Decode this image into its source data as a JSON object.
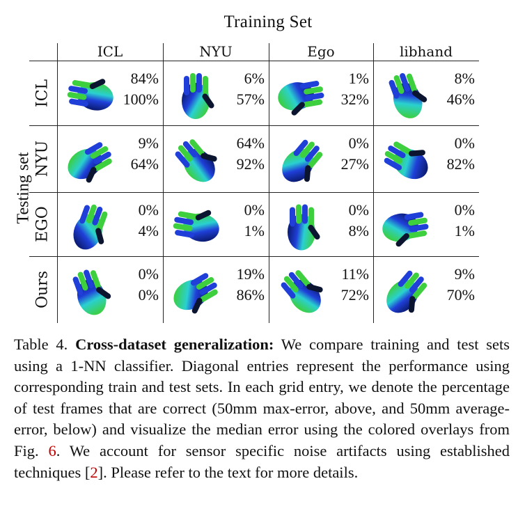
{
  "table": {
    "title": "Training Set",
    "col_headers": [
      "ICL",
      "NYU",
      "Ego",
      "libhand"
    ],
    "row_axis_label": "Testing set",
    "row_headers": [
      "ICL",
      "NYU",
      "EGO",
      "Ours"
    ],
    "rows": [
      {
        "cells": [
          {
            "top": "84%",
            "bottom": "100%"
          },
          {
            "top": "6%",
            "bottom": "57%"
          },
          {
            "top": "1%",
            "bottom": "32%"
          },
          {
            "top": "8%",
            "bottom": "46%"
          }
        ]
      },
      {
        "cells": [
          {
            "top": "9%",
            "bottom": "64%"
          },
          {
            "top": "64%",
            "bottom": "92%"
          },
          {
            "top": "0%",
            "bottom": "27%"
          },
          {
            "top": "0%",
            "bottom": "82%"
          }
        ]
      },
      {
        "cells": [
          {
            "top": "0%",
            "bottom": "4%"
          },
          {
            "top": "0%",
            "bottom": "1%"
          },
          {
            "top": "0%",
            "bottom": "8%"
          },
          {
            "top": "0%",
            "bottom": "1%"
          }
        ]
      },
      {
        "cells": [
          {
            "top": "0%",
            "bottom": "0%"
          },
          {
            "top": "19%",
            "bottom": "86%"
          },
          {
            "top": "11%",
            "bottom": "72%"
          },
          {
            "top": "9%",
            "bottom": "70%"
          }
        ]
      }
    ]
  },
  "caption": {
    "label": "Table 4.",
    "bold_title": "Cross-dataset generalization:",
    "text_before_ref1": " We compare training and test sets using a 1-NN classifier. Diagonal entries represent the performance using corresponding train and test sets. In each grid entry, we denote the percentage of test frames that are correct (50mm max-error, above, and 50mm average-error, below) and visualize the median error using the colored overlays from Fig. ",
    "ref1": "6",
    "text_before_ref2": ". We account for sensor specific noise artifacts using established techniques [",
    "ref2": "2",
    "text_end": "]. Please refer to the text for more details."
  },
  "colors": {
    "dark_blue": "#0a1a6e",
    "blue": "#1f3fd8",
    "cyan": "#2ad0d0",
    "green": "#3dcf3d",
    "dark": "#0b1530",
    "ref_red": "#c00000"
  }
}
